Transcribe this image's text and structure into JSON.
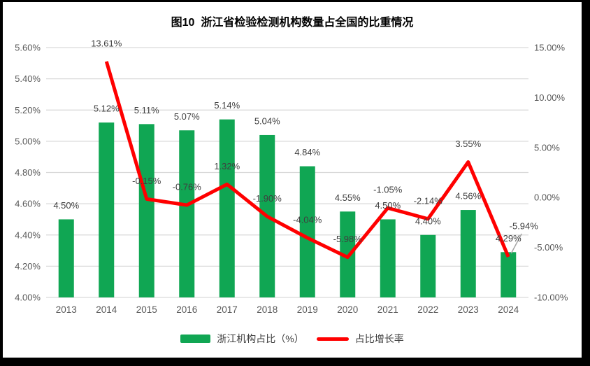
{
  "title": "图10  浙江省检验检测机构数量占全国的比重情况",
  "chart_data": {
    "type": "bar",
    "subtype": "combo bar + line, dual y-axis",
    "categories": [
      "2013",
      "2014",
      "2015",
      "2016",
      "2017",
      "2018",
      "2019",
      "2020",
      "2021",
      "2022",
      "2023",
      "2024"
    ],
    "series": [
      {
        "name": "浙江机构占比（%）",
        "type": "bar",
        "axis": "left",
        "color": "#10A653",
        "values": [
          4.5,
          5.12,
          5.11,
          5.07,
          5.14,
          5.04,
          4.84,
          4.55,
          4.5,
          4.4,
          4.56,
          4.29
        ],
        "labels": [
          "4.50%",
          "5.12%",
          "5.11%",
          "5.07%",
          "5.14%",
          "5.04%",
          "4.84%",
          "4.55%",
          "4.50%",
          "4.40%",
          "4.56%",
          "4.29%"
        ]
      },
      {
        "name": "占比增长率",
        "type": "line",
        "axis": "right",
        "color": "#FF0000",
        "values": [
          null,
          13.61,
          -0.15,
          -0.76,
          1.32,
          -1.9,
          -4.04,
          -5.98,
          -1.05,
          -2.14,
          3.55,
          -5.94
        ],
        "labels": [
          null,
          "13.61%",
          "-0.15%",
          "-0.76%",
          "1.32%",
          "-1.90%",
          "-4.04%",
          "-5.98%",
          "-1.05%",
          "-2.14%",
          "3.55%",
          "-5.94%"
        ],
        "last_label_callout": {
          "dx": 22,
          "dy": -44,
          "leader_color": "#A6A6A6"
        }
      }
    ],
    "axes": {
      "left": {
        "min": 4.0,
        "max": 5.6,
        "step": 0.2,
        "tick_labels": [
          "4.00%",
          "4.20%",
          "4.40%",
          "4.60%",
          "4.80%",
          "5.00%",
          "5.20%",
          "5.40%",
          "5.60%"
        ]
      },
      "right": {
        "min": -10.0,
        "max": 15.0,
        "step": 5.0,
        "tick_labels": [
          "-10.00%",
          "-5.00%",
          "0.00%",
          "5.00%",
          "10.00%",
          "15.00%"
        ]
      }
    },
    "grid": true,
    "legend_position": "bottom",
    "styles": {
      "grid_color": "#D9D9D9",
      "axis_text_color": "#595959",
      "data_label_color": "#3F3F3F",
      "background": "#FFFFFF",
      "frame_border": "#000000"
    }
  }
}
